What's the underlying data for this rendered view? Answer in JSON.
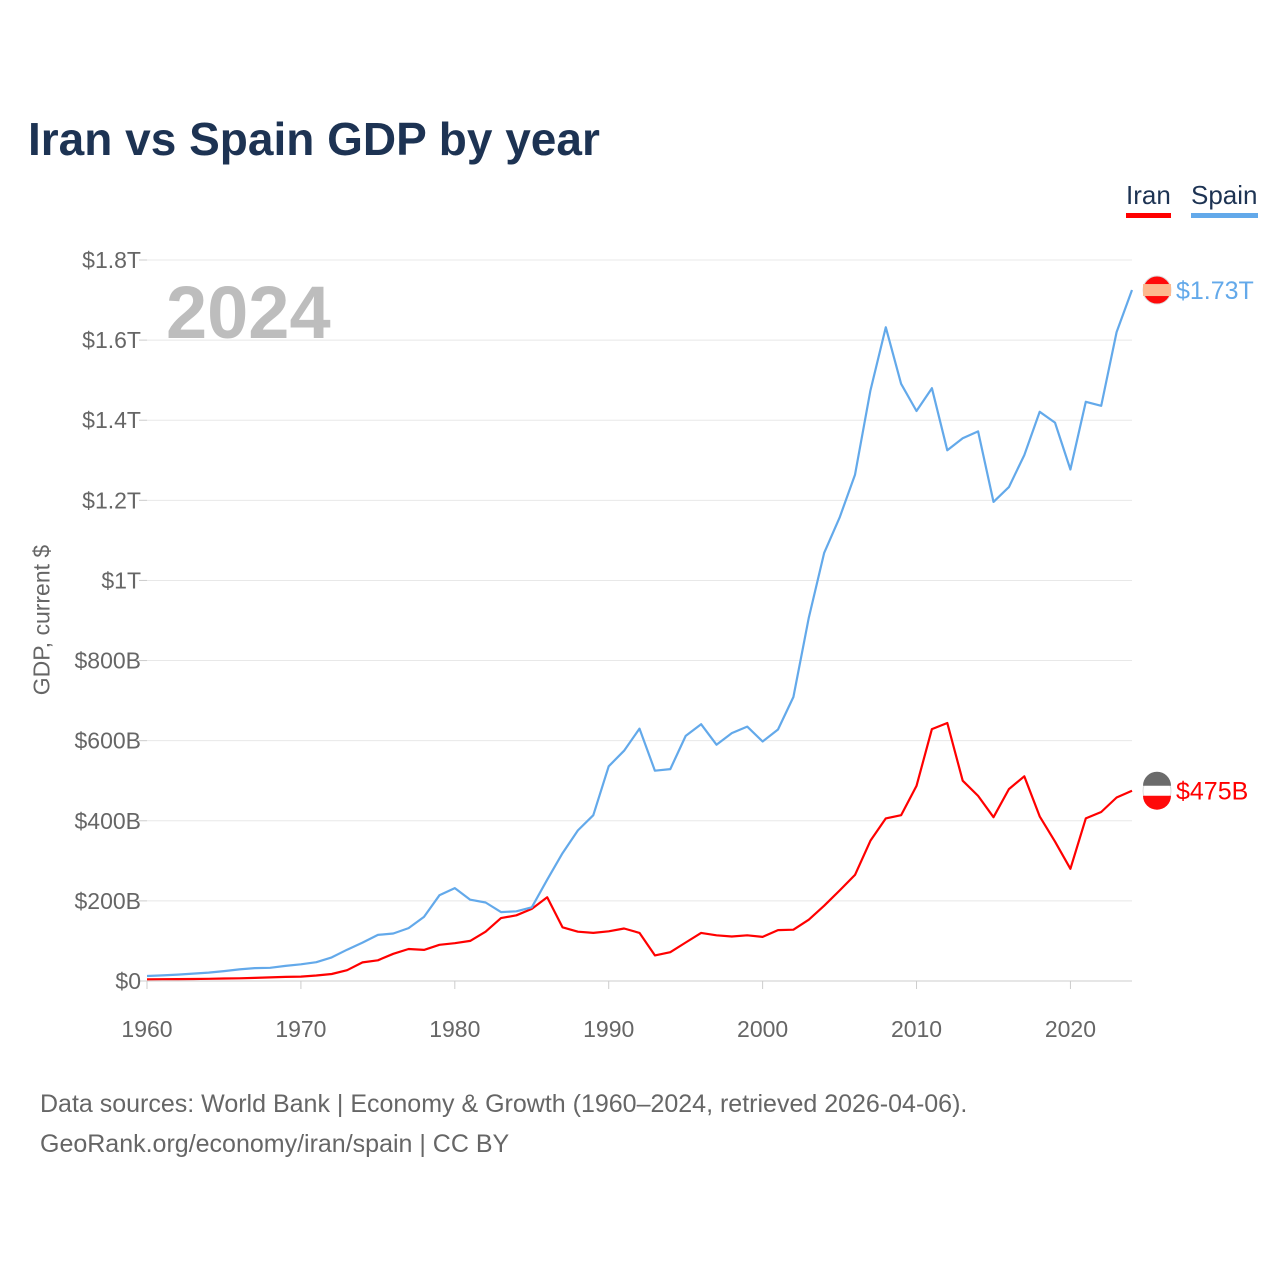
{
  "chart_data": {
    "type": "line",
    "title": "Iran vs Spain GDP by year",
    "ylabel": "GDP, current $",
    "xlabel": "",
    "year_label": "2024",
    "x": [
      1960,
      1961,
      1962,
      1963,
      1964,
      1965,
      1966,
      1967,
      1968,
      1969,
      1970,
      1971,
      1972,
      1973,
      1974,
      1975,
      1976,
      1977,
      1978,
      1979,
      1980,
      1981,
      1982,
      1983,
      1984,
      1985,
      1986,
      1987,
      1988,
      1989,
      1990,
      1991,
      1992,
      1993,
      1994,
      1995,
      1996,
      1997,
      1998,
      1999,
      2000,
      2001,
      2002,
      2003,
      2004,
      2005,
      2006,
      2007,
      2008,
      2009,
      2010,
      2011,
      2012,
      2013,
      2014,
      2015,
      2016,
      2017,
      2018,
      2019,
      2020,
      2021,
      2022,
      2023,
      2024
    ],
    "series": [
      {
        "name": "Iran",
        "color": "#ff0000",
        "end_label": "$475B",
        "values": [
          4.2,
          4.4,
          4.7,
          4.9,
          5.4,
          6.2,
          6.8,
          7.7,
          8.9,
          10.2,
          11.1,
          13.7,
          17.4,
          27,
          46.5,
          51.8,
          68,
          80,
          77.6,
          90.4,
          94.4,
          100,
          123,
          157,
          164,
          180,
          209,
          134,
          123,
          120,
          124,
          131,
          120,
          64,
          72,
          96,
          120,
          114,
          111,
          114,
          110,
          127,
          128,
          153,
          188,
          226,
          265,
          350,
          406,
          414,
          487,
          629,
          644,
          500,
          462,
          409,
          479,
          511,
          411,
          348,
          280,
          406,
          422,
          458,
          475
        ]
      },
      {
        "name": "Spain",
        "color": "#63a9ea",
        "end_label": "$1.73T",
        "values": [
          12.4,
          14,
          15.9,
          18.5,
          21,
          24.8,
          28.9,
          32.3,
          33,
          37.6,
          41.6,
          47,
          58.9,
          78.2,
          95.8,
          115,
          118.5,
          132,
          160,
          214,
          232,
          203,
          196,
          172,
          174,
          184,
          253,
          319,
          376,
          414,
          536,
          575,
          630,
          525,
          529,
          612,
          641,
          590,
          619,
          635,
          598,
          628,
          709,
          907,
          1069,
          1157,
          1264,
          1474,
          1632,
          1491,
          1423,
          1480,
          1325,
          1355,
          1372,
          1196,
          1233,
          1313,
          1421,
          1394,
          1277,
          1446,
          1436,
          1620,
          1725
        ]
      }
    ],
    "units": "billions USD",
    "ylim": [
      0,
      1800
    ],
    "xlim": [
      1960,
      2024
    ],
    "yticks": [
      {
        "v": 0,
        "label": "$0"
      },
      {
        "v": 200,
        "label": "$200B"
      },
      {
        "v": 400,
        "label": "$400B"
      },
      {
        "v": 600,
        "label": "$600B"
      },
      {
        "v": 800,
        "label": "$800B"
      },
      {
        "v": 1000,
        "label": "$1T"
      },
      {
        "v": 1200,
        "label": "$1.2T"
      },
      {
        "v": 1400,
        "label": "$1.4T"
      },
      {
        "v": 1600,
        "label": "$1.6T"
      },
      {
        "v": 1800,
        "label": "$1.8T"
      }
    ],
    "xticks": [
      {
        "v": 1960,
        "label": "1960"
      },
      {
        "v": 1970,
        "label": "1970"
      },
      {
        "v": 1980,
        "label": "1980"
      },
      {
        "v": 1990,
        "label": "1990"
      },
      {
        "v": 2000,
        "label": "2000"
      },
      {
        "v": 2010,
        "label": "2010"
      },
      {
        "v": 2020,
        "label": "2020"
      }
    ],
    "grid": true,
    "legend": "top-right"
  },
  "legend": {
    "iran": "Iran",
    "spain": "Spain"
  },
  "source": {
    "line1": "Data sources: World Bank | Economy & Growth (1960–2024, retrieved 2026-04-06).",
    "line2": "GeoRank.org/economy/iran/spain | CC BY"
  }
}
